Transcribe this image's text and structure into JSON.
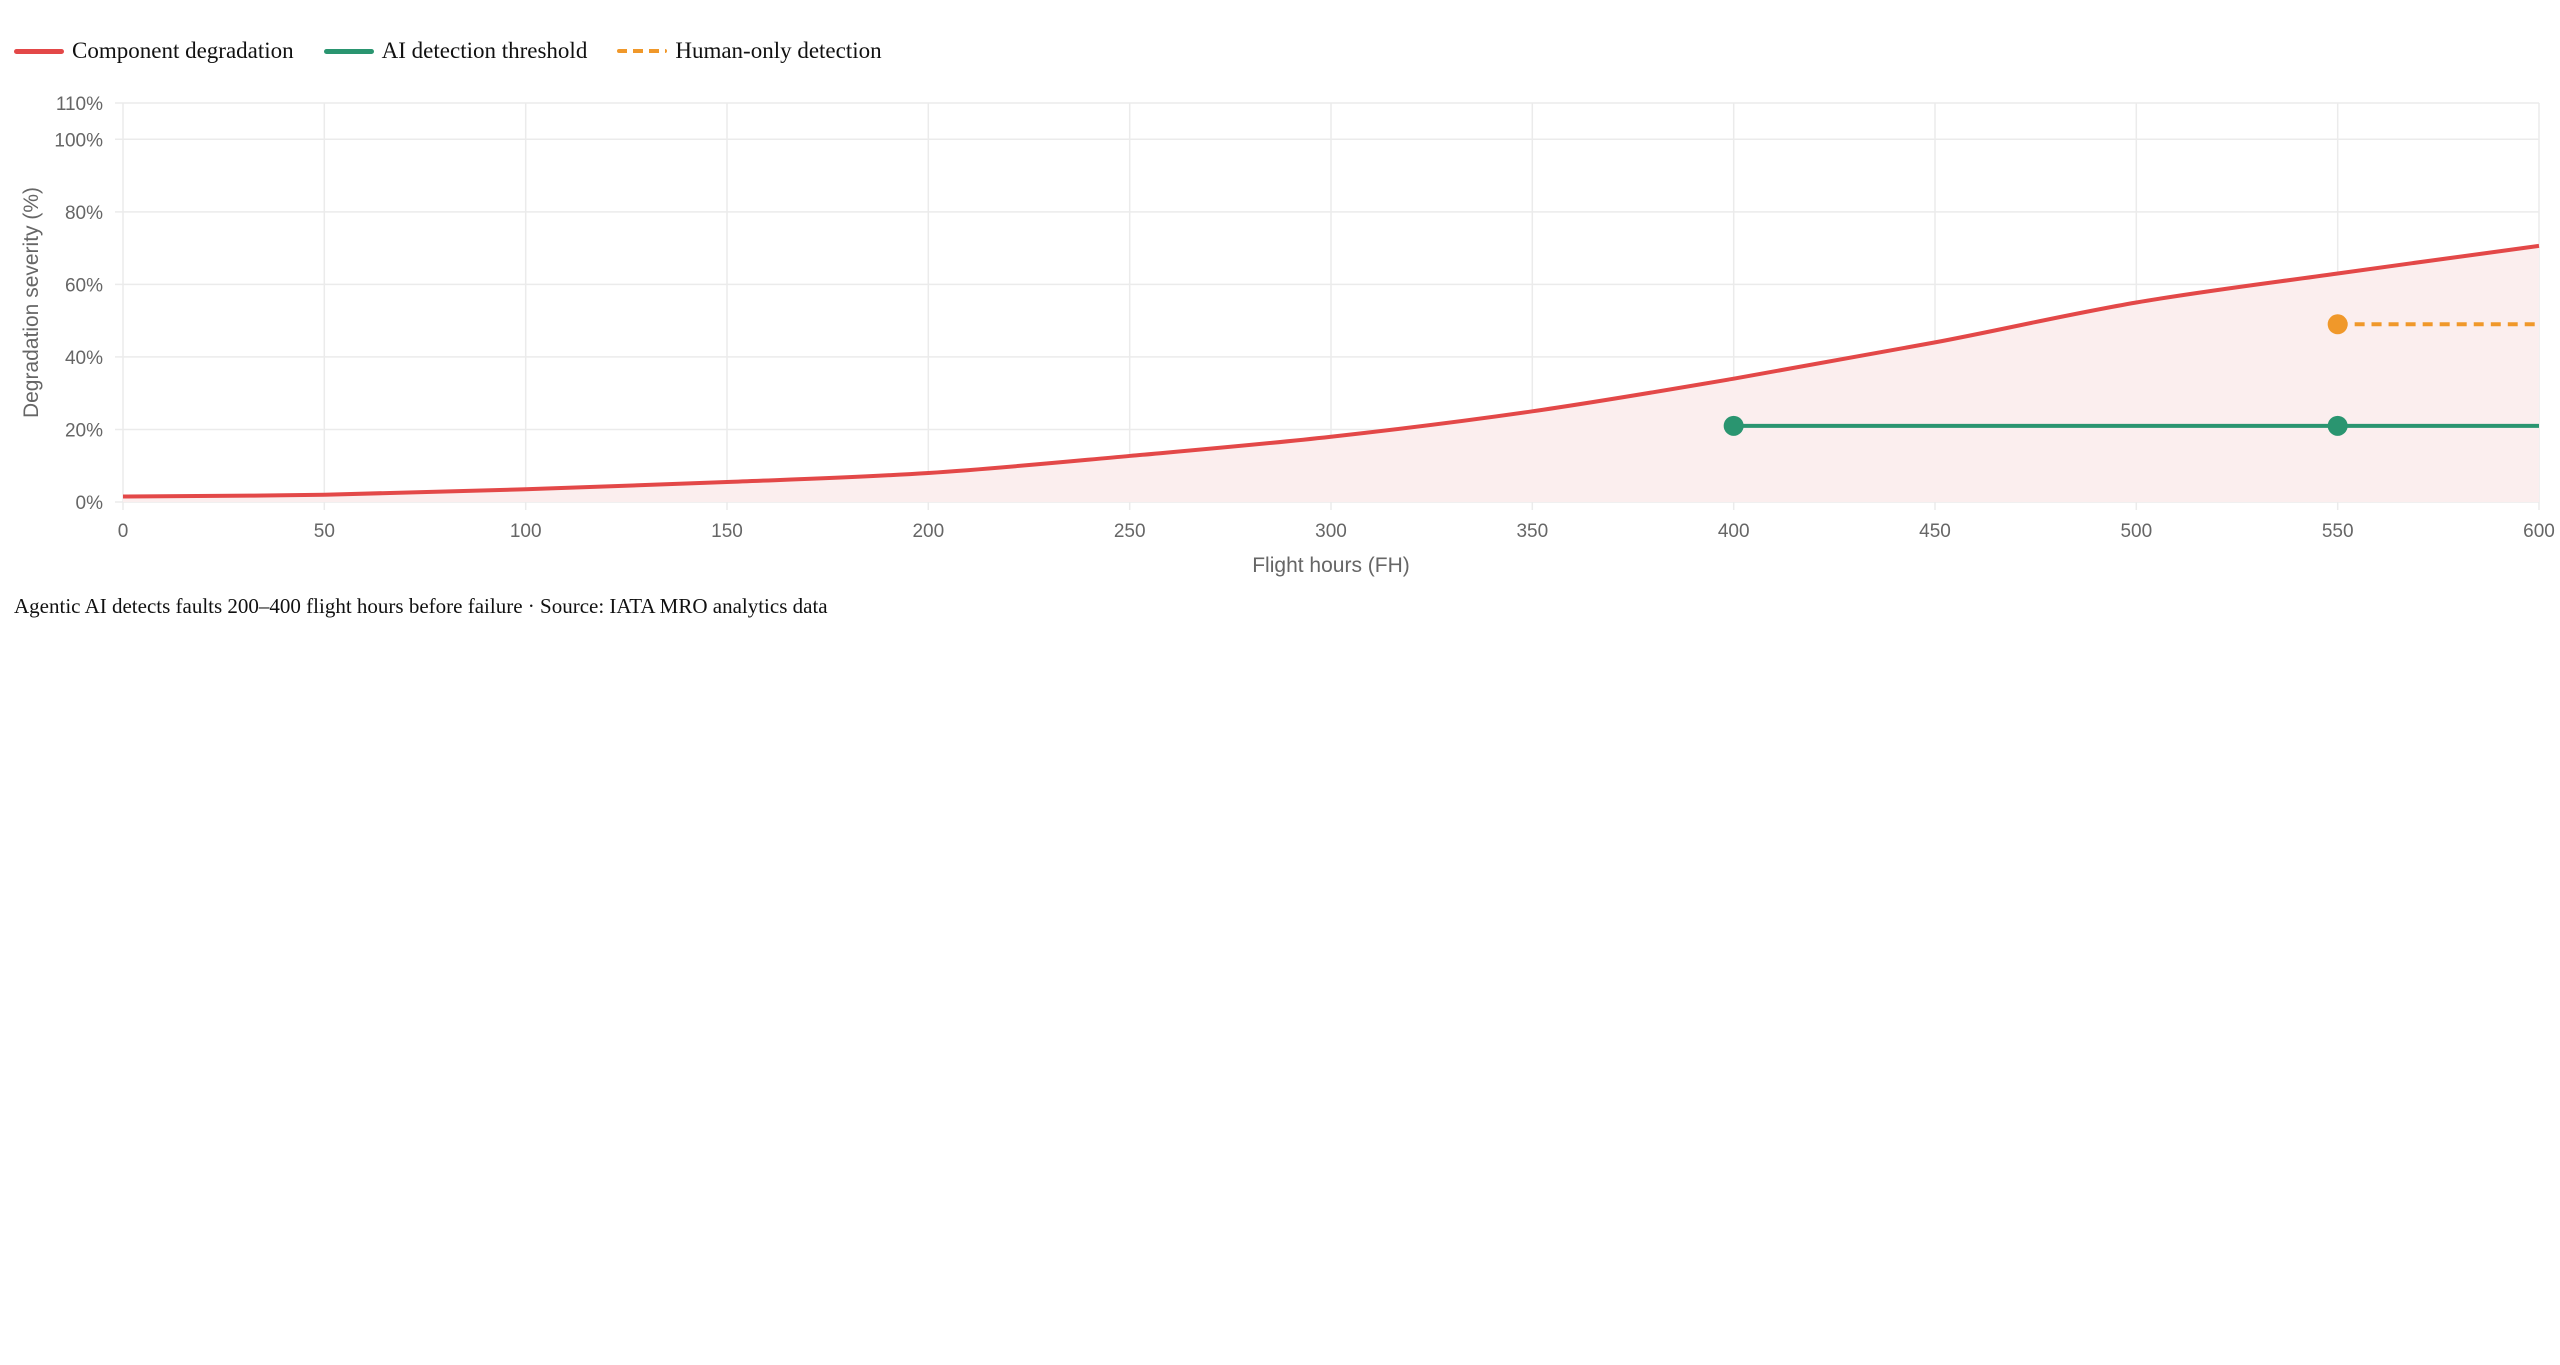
{
  "chart_data": {
    "type": "line",
    "xlabel": "Flight hours (FH)",
    "ylabel": "Degradation severity (%)",
    "xlim": [
      0,
      600
    ],
    "ylim": [
      0,
      110
    ],
    "x_ticks": [
      "0",
      "50",
      "100",
      "150",
      "200",
      "250",
      "300",
      "350",
      "400",
      "450",
      "500",
      "550",
      "600"
    ],
    "y_ticks": [
      "0%",
      "20%",
      "40%",
      "60%",
      "80%",
      "100%",
      "110%"
    ],
    "y_tick_values": [
      0,
      20,
      40,
      60,
      80,
      100,
      110
    ],
    "grid": true,
    "legend_position": "top-left",
    "series": [
      {
        "name": "Component degradation",
        "color": "#e34848",
        "fill": "#fbeeee",
        "dashed": false,
        "x": [
          0,
          50,
          100,
          150,
          200,
          250,
          300,
          350,
          400,
          450,
          500,
          550,
          600
        ],
        "y": [
          1.5,
          2,
          3.5,
          5.5,
          8,
          12.7,
          18,
          25,
          34,
          44,
          55,
          63,
          70.6
        ],
        "markers": []
      },
      {
        "name": "AI detection threshold",
        "color": "#2a9570",
        "dashed": false,
        "x": [
          400,
          550,
          600
        ],
        "y": [
          21,
          21,
          21
        ],
        "markers": [
          400,
          550
        ]
      },
      {
        "name": "Human-only detection",
        "color": "#f0982a",
        "dashed": true,
        "x": [
          550,
          600
        ],
        "y": [
          49,
          49
        ],
        "markers": [
          550
        ]
      }
    ]
  },
  "caption": "Agentic AI detects faults 200–400 flight hours before failure · Source: IATA MRO analytics data"
}
